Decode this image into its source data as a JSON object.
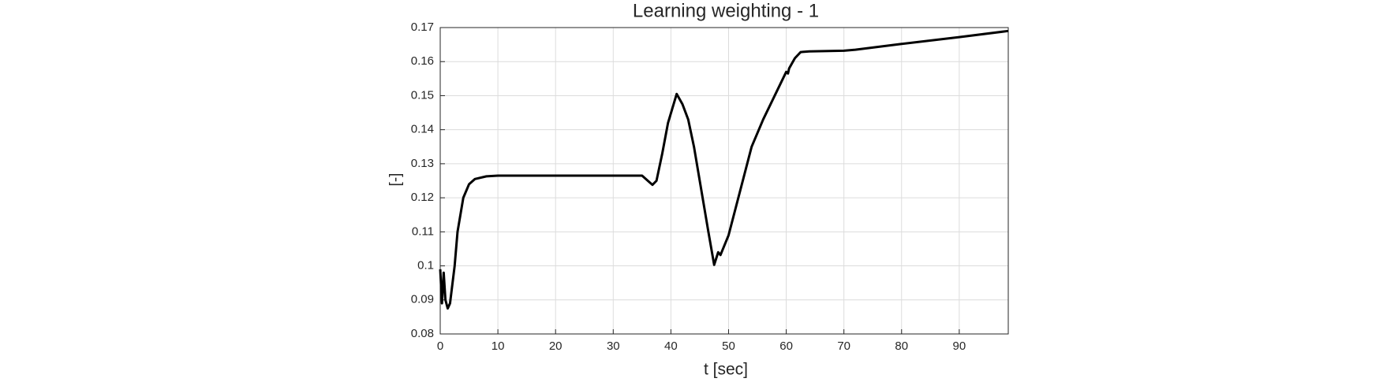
{
  "chart_data": {
    "type": "line",
    "title": "Learning weighting - 1",
    "x_label": "t [sec]",
    "y_label": "[-]",
    "x": [
      0,
      0.3,
      0.6,
      0.9,
      1.3,
      1.7,
      2.5,
      3,
      4,
      5,
      6,
      8,
      10,
      35,
      36,
      36.8,
      37.5,
      38.5,
      39.5,
      41,
      42,
      43,
      44,
      45,
      46.5,
      47.5,
      48.2,
      48.6,
      50,
      52,
      54,
      56,
      58,
      60,
      60.3,
      60.5,
      61.5,
      62.5,
      64,
      70,
      72,
      80,
      90,
      98.5
    ],
    "series": [
      {
        "color": "#000000",
        "values": [
          0.099,
          0.089,
          0.098,
          0.09,
          0.0875,
          0.089,
          0.1,
          0.11,
          0.12,
          0.124,
          0.1255,
          0.1263,
          0.1265,
          0.1265,
          0.125,
          0.1238,
          0.125,
          0.133,
          0.142,
          0.1505,
          0.1475,
          0.143,
          0.135,
          0.125,
          0.11,
          0.1003,
          0.104,
          0.1032,
          0.109,
          0.122,
          0.135,
          0.143,
          0.15,
          0.157,
          0.1565,
          0.158,
          0.161,
          0.1628,
          0.163,
          0.1632,
          0.1635,
          0.1652,
          0.1672,
          0.169
        ]
      }
    ],
    "xlim": [
      0,
      98.5
    ],
    "ylim": [
      0.08,
      0.17
    ],
    "xticks": [
      0,
      10,
      20,
      30,
      40,
      50,
      60,
      70,
      80,
      90
    ],
    "yticks": [
      0.08,
      0.09,
      0.1,
      0.11,
      0.12,
      0.13,
      0.14,
      0.15,
      0.16,
      0.17
    ],
    "grid": true
  }
}
